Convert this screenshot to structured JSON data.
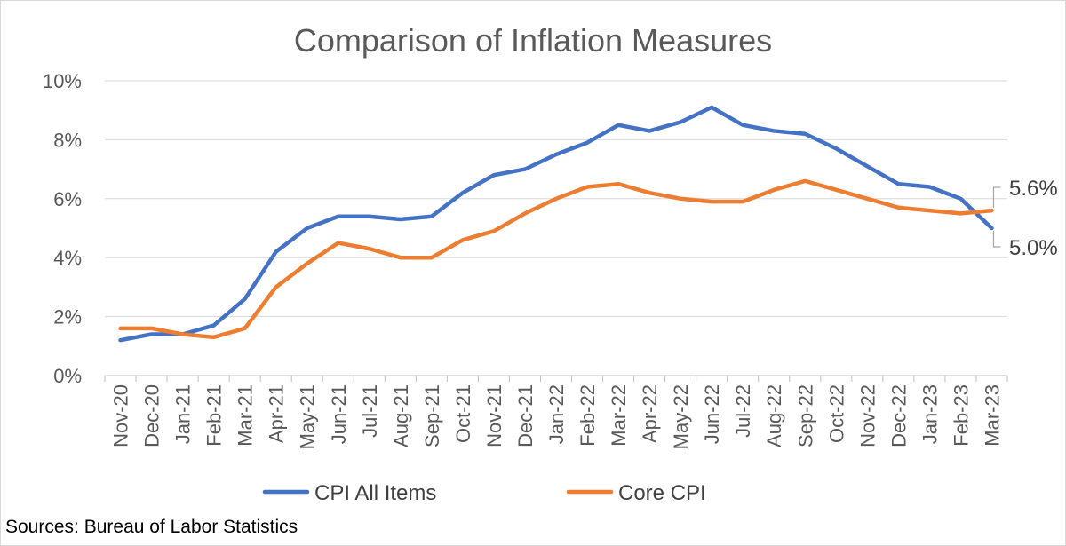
{
  "chart_data": {
    "type": "line",
    "title": "Comparison of Inflation Measures",
    "xlabel": "",
    "ylabel": "",
    "ylim": [
      0,
      10
    ],
    "y_ticks": [
      "0%",
      "2%",
      "4%",
      "6%",
      "8%",
      "10%"
    ],
    "y_tick_values": [
      0,
      2,
      4,
      6,
      8,
      10
    ],
    "grid": true,
    "legend_position": "bottom",
    "categories": [
      "Nov-20",
      "Dec-20",
      "Jan-21",
      "Feb-21",
      "Mar-21",
      "Apr-21",
      "May-21",
      "Jun-21",
      "Jul-21",
      "Aug-21",
      "Sep-21",
      "Oct-21",
      "Nov-21",
      "Dec-21",
      "Jan-22",
      "Feb-22",
      "Mar-22",
      "Apr-22",
      "May-22",
      "Jun-22",
      "Jul-22",
      "Aug-22",
      "Sep-22",
      "Oct-22",
      "Nov-22",
      "Dec-22",
      "Jan-23",
      "Feb-23",
      "Mar-23"
    ],
    "series": [
      {
        "name": "CPI All Items",
        "color": "#4472C4",
        "values": [
          1.2,
          1.4,
          1.4,
          1.7,
          2.6,
          4.2,
          5.0,
          5.4,
          5.4,
          5.3,
          5.4,
          6.2,
          6.8,
          7.0,
          7.5,
          7.9,
          8.5,
          8.3,
          8.6,
          9.1,
          8.5,
          8.3,
          8.2,
          7.7,
          7.1,
          6.5,
          6.4,
          6.0,
          5.0
        ],
        "end_label": "5.0%"
      },
      {
        "name": "Core CPI",
        "color": "#ED7D31",
        "values": [
          1.6,
          1.6,
          1.4,
          1.3,
          1.6,
          3.0,
          3.8,
          4.5,
          4.3,
          4.0,
          4.0,
          4.6,
          4.9,
          5.5,
          6.0,
          6.4,
          6.5,
          6.2,
          6.0,
          5.9,
          5.9,
          6.3,
          6.6,
          6.3,
          6.0,
          5.7,
          5.6,
          5.5,
          5.6
        ],
        "end_label": "5.6%"
      }
    ]
  },
  "footer": {
    "source_text": "Sources: Bureau of Labor Statistics"
  }
}
